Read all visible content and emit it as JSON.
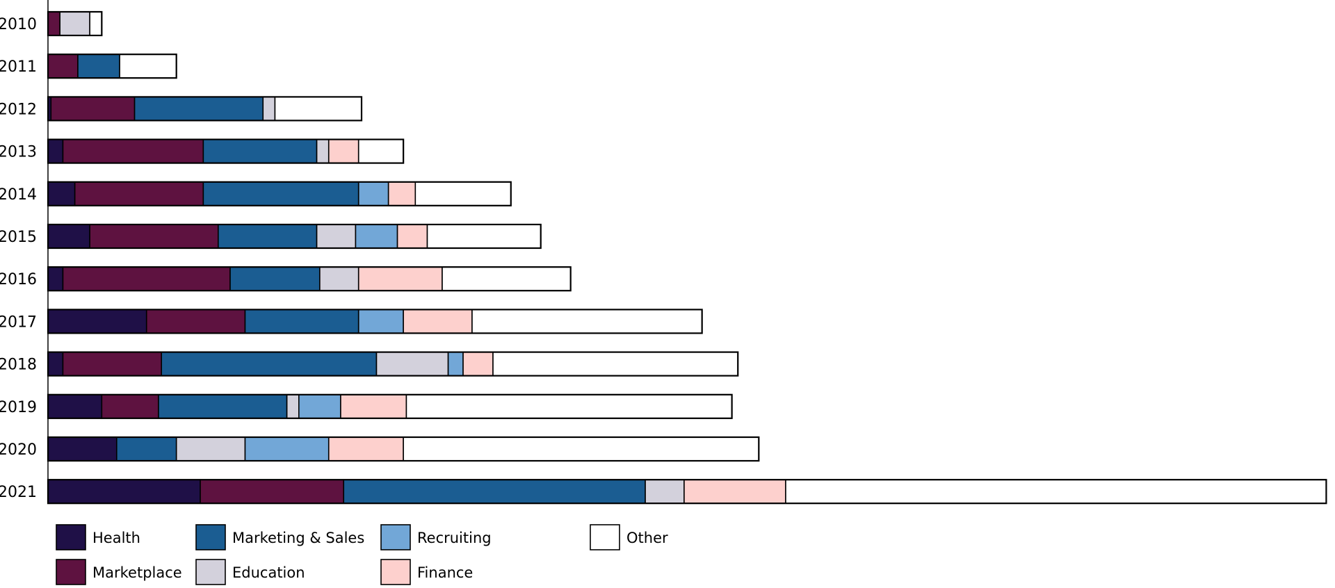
{
  "chart_data": {
    "type": "bar",
    "orientation": "horizontal",
    "stacked": true,
    "categories": [
      "2010",
      "2011",
      "2012",
      "2013",
      "2014",
      "2015",
      "2016",
      "2017",
      "2018",
      "2019",
      "2020",
      "2021"
    ],
    "series": [
      {
        "name": "Health",
        "color": "#1f1047",
        "values": [
          0,
          0,
          1,
          5,
          9,
          14,
          5,
          33,
          5,
          18,
          23,
          51
        ]
      },
      {
        "name": "Marketplace",
        "color": "#5e1240",
        "values": [
          4,
          10,
          28,
          47,
          43,
          43,
          56,
          33,
          33,
          19,
          0,
          48
        ]
      },
      {
        "name": "Marketing & Sales",
        "color": "#1b5d92",
        "values": [
          0,
          14,
          43,
          38,
          52,
          33,
          30,
          38,
          72,
          43,
          20,
          101
        ]
      },
      {
        "name": "Education",
        "color": "#d3d1dc",
        "values": [
          10,
          0,
          4,
          4,
          0,
          13,
          13,
          0,
          24,
          4,
          23,
          13
        ]
      },
      {
        "name": "Recruiting",
        "color": "#72a7d7",
        "values": [
          0,
          0,
          0,
          0,
          10,
          14,
          0,
          15,
          5,
          14,
          28,
          0
        ]
      },
      {
        "name": "Finance",
        "color": "#fdd0cd",
        "values": [
          0,
          0,
          0,
          10,
          9,
          10,
          28,
          23,
          10,
          22,
          25,
          34
        ]
      },
      {
        "name": "Other",
        "color": "#ffffff",
        "values": [
          4,
          19,
          29,
          15,
          32,
          38,
          43,
          77,
          82,
          109,
          119,
          181
        ]
      }
    ],
    "xlim": [
      0,
      430
    ],
    "legend_position": "bottom-left",
    "grid": false
  }
}
